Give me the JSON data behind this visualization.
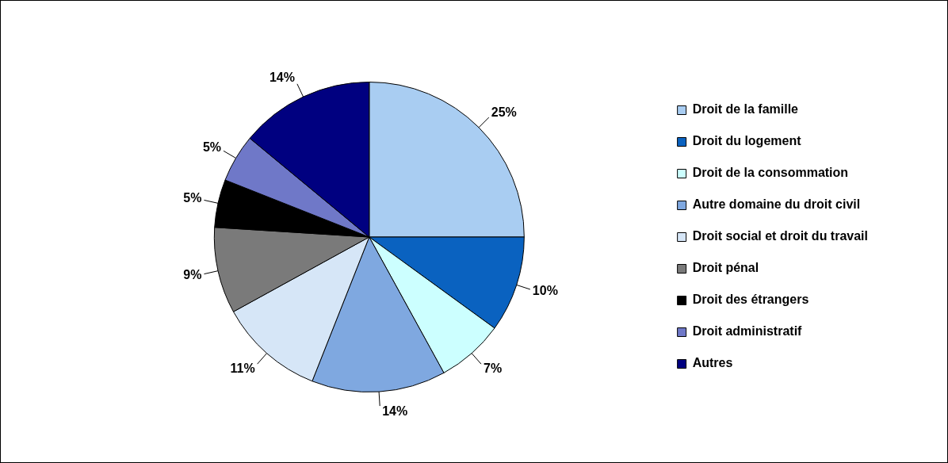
{
  "chart_data": {
    "type": "pie",
    "categories": [
      "Droit de la famille",
      "Droit du logement",
      "Droit de la consommation",
      "Autre domaine du droit civil",
      "Droit social et droit du travail",
      "Droit pénal",
      "Droit des étrangers",
      "Droit administratif",
      "Autres"
    ],
    "values": [
      25,
      10,
      7,
      14,
      11,
      9,
      5,
      5,
      14
    ],
    "colors": [
      "#a9cdf2",
      "#0a62c0",
      "#ccffff",
      "#7fa8e0",
      "#d6e6f7",
      "#7a7a7a",
      "#000000",
      "#6f78c8",
      "#000080"
    ],
    "data_labels": true,
    "value_labels": [
      "25%",
      "10%",
      "7%",
      "14%",
      "11%",
      "9%",
      "5%",
      "5%",
      "14%"
    ],
    "legend": "right"
  }
}
